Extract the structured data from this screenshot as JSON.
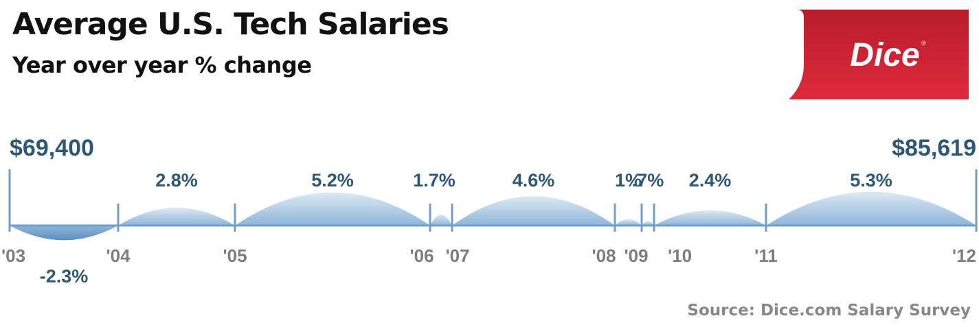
{
  "title": "Average U.S. Tech Salaries",
  "subtitle": "Year over year % change",
  "logo_text": "Dice",
  "source": "Source: Dice.com Salary Survey",
  "colors": {
    "text": "#111111",
    "value": "#2e5874",
    "axis": "#6f9fca",
    "fill": "#a9c7e2",
    "tick_label": "#7d7d7d",
    "logo": "#d42234"
  },
  "chart_data": {
    "type": "area",
    "title": "Average U.S. Tech Salaries",
    "subtitle": "Year over year % change",
    "start_value_label": "$69,400",
    "end_value_label": "$85,619",
    "years": [
      "'03",
      "'04",
      "'05",
      "'06",
      "'07",
      "'08",
      "'09",
      "'10",
      "'11",
      "'12"
    ],
    "segments": [
      {
        "from": "'03",
        "to": "'04",
        "value": -2.3,
        "label": "-2.3%"
      },
      {
        "from": "'04",
        "to": "'05",
        "value": 2.8,
        "label": "2.8%"
      },
      {
        "from": "'05",
        "to": "'06",
        "value": 5.2,
        "label": "5.2%"
      },
      {
        "from": "'06",
        "to": "'07",
        "value": 1.7,
        "label": "1.7%"
      },
      {
        "from": "'07",
        "to": "'08",
        "value": 4.6,
        "label": "4.6%"
      },
      {
        "from": "'08",
        "to": "'09",
        "value": 1.0,
        "label": "1%"
      },
      {
        "from": "'09",
        "to": "'10",
        "value": 0.7,
        "label": ".7%"
      },
      {
        "from": "'10",
        "to": "'11",
        "value": 2.4,
        "label": "2.4%"
      },
      {
        "from": "'11",
        "to": "'12",
        "value": 5.3,
        "label": "5.3%"
      }
    ],
    "legend": "none",
    "grid": false
  }
}
